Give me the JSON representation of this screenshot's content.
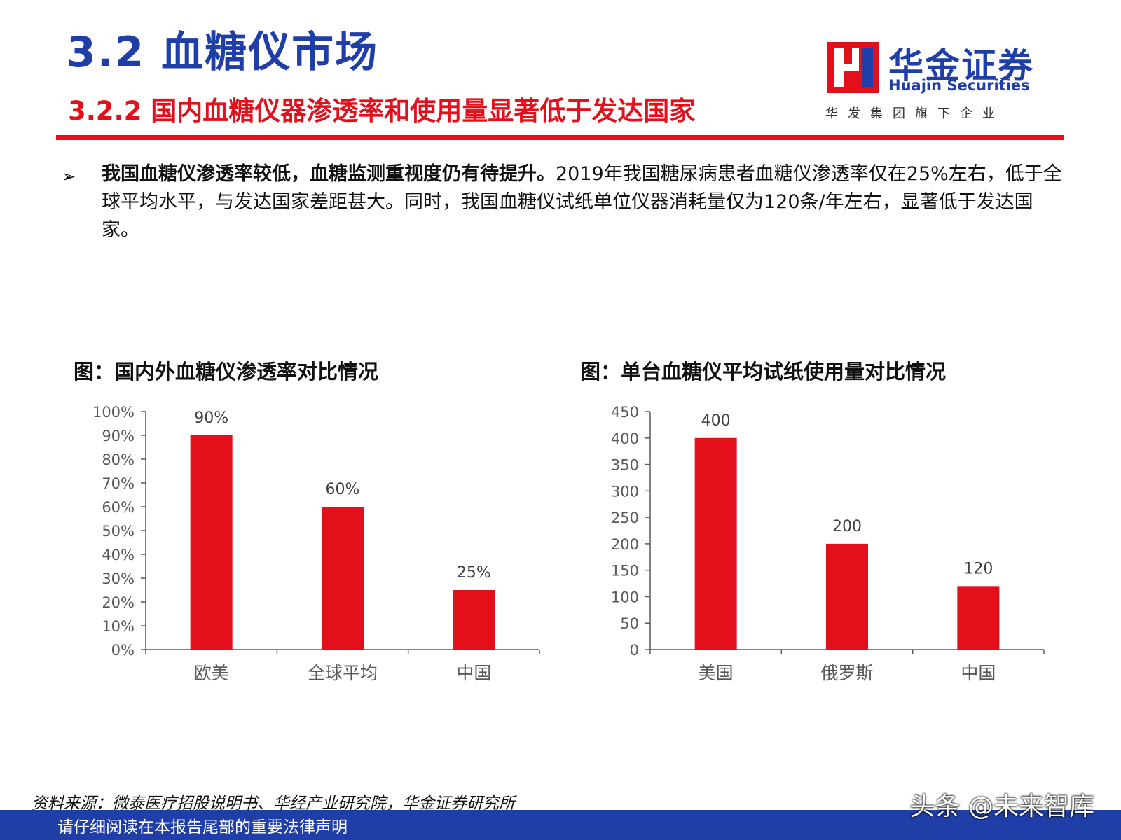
{
  "header": {
    "title": "3.2  血糖仪市场",
    "subtitle": "3.2.2  国内血糖仪器渗透率和使用量显著低于发达国家"
  },
  "logo": {
    "name_cn": "华金证券",
    "name_en": "Huajin Securities",
    "tagline": "华发集团旗下企业"
  },
  "bullet": {
    "marker": "➢",
    "bold": "我国血糖仪渗透率较低，血糖监测重视度仍有待提升。",
    "text": "2019年我国糖尿病患者血糖仪渗透率仅在25%左右，低于全球平均水平，与发达国家差距甚大。同时，我国血糖仪试纸单位仪器消耗量仅为120条/年左右，显著低于发达国家。"
  },
  "colors": {
    "bar": "#e3101c",
    "title_blue": "#1f3ea8",
    "accent_red": "#e3101c"
  },
  "chart_data": [
    {
      "type": "bar",
      "title": "图：国内外血糖仪渗透率对比情况",
      "categories": [
        "欧美",
        "全球平均",
        "中国"
      ],
      "values": [
        0.9,
        0.6,
        0.25
      ],
      "data_labels": [
        "90%",
        "60%",
        "25%"
      ],
      "ylim": [
        0,
        1.0
      ],
      "yticks": [
        0,
        0.1,
        0.2,
        0.3,
        0.4,
        0.5,
        0.6,
        0.7,
        0.8,
        0.9,
        1.0
      ],
      "ytick_labels": [
        "0%",
        "10%",
        "20%",
        "30%",
        "40%",
        "50%",
        "60%",
        "70%",
        "80%",
        "90%",
        "100%"
      ],
      "grid": false,
      "legend": "none"
    },
    {
      "type": "bar",
      "title": "图：单台血糖仪平均试纸使用量对比情况",
      "categories": [
        "美国",
        "俄罗斯",
        "中国"
      ],
      "values": [
        400,
        200,
        120
      ],
      "data_labels": [
        "400",
        "200",
        "120"
      ],
      "ylim": [
        0,
        450
      ],
      "yticks": [
        0,
        50,
        100,
        150,
        200,
        250,
        300,
        350,
        400,
        450
      ],
      "ytick_labels": [
        "0",
        "50",
        "100",
        "150",
        "200",
        "250",
        "300",
        "350",
        "400",
        "450"
      ],
      "grid": false,
      "legend": "none"
    }
  ],
  "footer": {
    "source": "资料来源：微泰医疗招股说明书、华经产业研究院，华金证券研究所",
    "disclaimer": "请仔细阅读在本报告尾部的重要法律声明",
    "watermark": "头条 @未来智库"
  }
}
